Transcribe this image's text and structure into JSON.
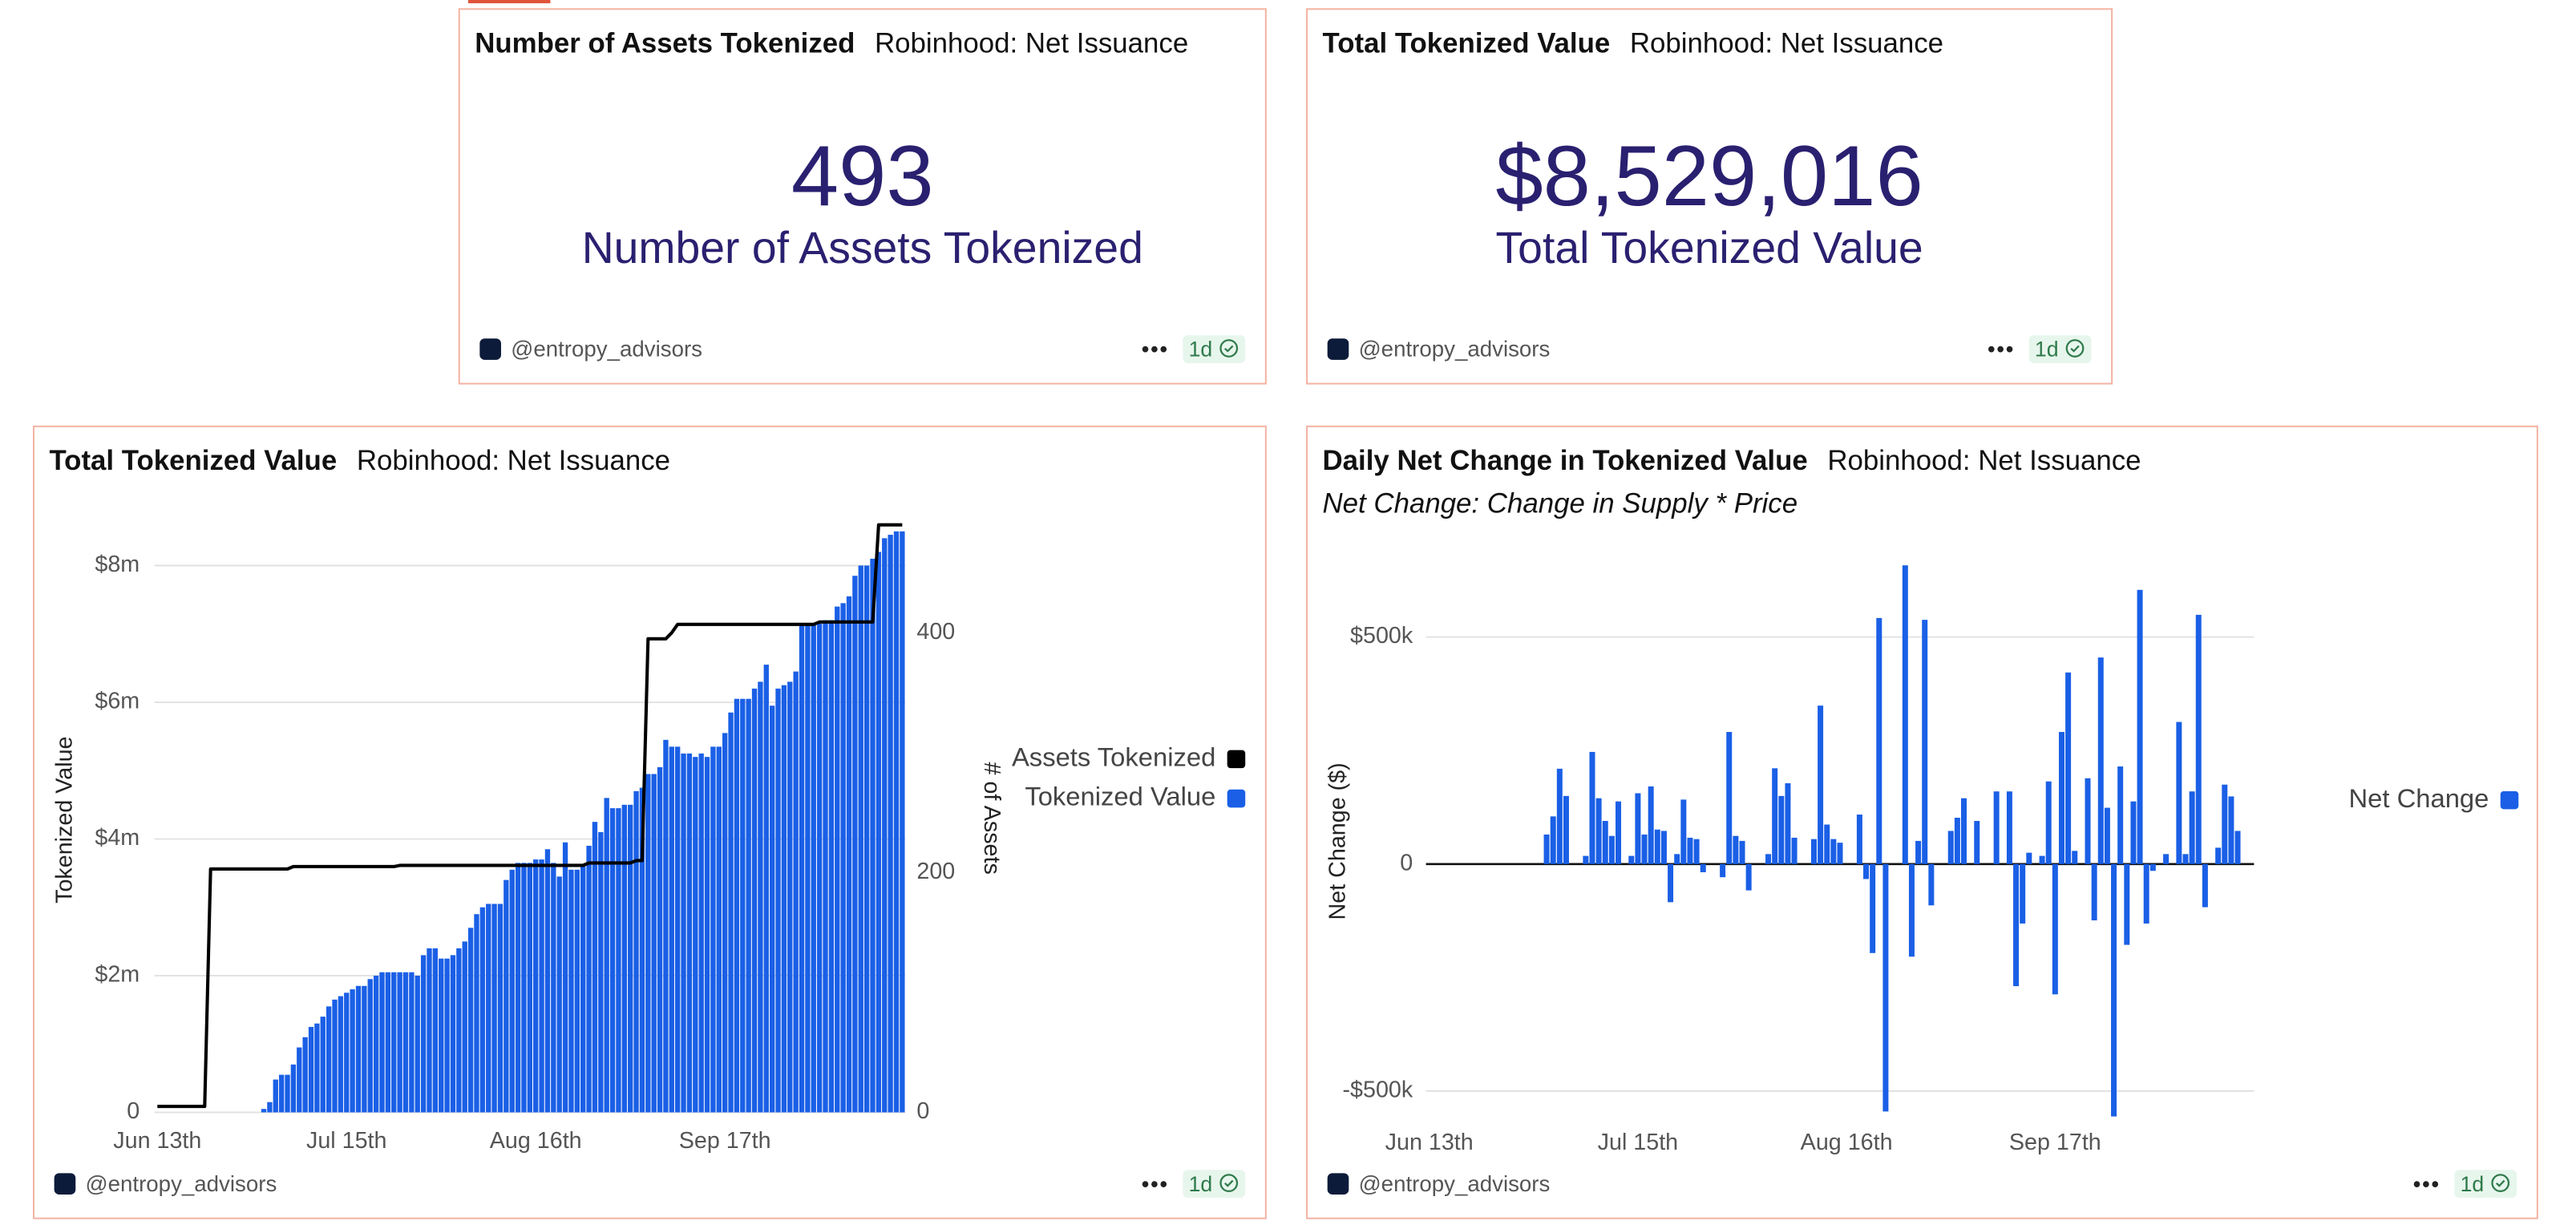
{
  "widgets": [
    {
      "title": "Number of Assets Tokenized",
      "subtitle": "Robinhood: Net Issuance",
      "value": 493,
      "label": "Number of Assets Tokenized",
      "author": "@entropy_advisors",
      "age": "1d"
    },
    {
      "title": "Total Tokenized Value",
      "subtitle": "Robinhood: Net Issuance",
      "value": "$8,529,016",
      "label": "Total Tokenized Value",
      "author": "@entropy_advisors",
      "age": "1d"
    }
  ],
  "chart_footers": [
    {
      "author": "@entropy_advisors",
      "age": "1d"
    },
    {
      "author": "@entropy_advisors",
      "age": "1d"
    }
  ],
  "chart_data": [
    {
      "type": "bar",
      "title": "Total Tokenized Value",
      "subtitle": "Robinhood: Net Issuance",
      "ylabel": "Tokenized Value",
      "y2label": "# of Assets",
      "categories": [
        "Jun 13th",
        null,
        null,
        null,
        null,
        null,
        null,
        null,
        null,
        null,
        null,
        null,
        null,
        null,
        null,
        null,
        null,
        null,
        null,
        null,
        null,
        null,
        null,
        null,
        null,
        null,
        null,
        null,
        null,
        null,
        null,
        null,
        "Jul 15th",
        null,
        null,
        null,
        null,
        null,
        null,
        null,
        null,
        null,
        null,
        null,
        null,
        null,
        null,
        null,
        null,
        null,
        null,
        null,
        null,
        null,
        null,
        null,
        null,
        null,
        null,
        null,
        null,
        null,
        null,
        null,
        "Aug 16th",
        null,
        null,
        null,
        null,
        null,
        null,
        null,
        null,
        null,
        null,
        null,
        null,
        null,
        null,
        null,
        null,
        null,
        null,
        null,
        null,
        null,
        null,
        null,
        null,
        null,
        null,
        null,
        null,
        null,
        null,
        null,
        "Sep 17th",
        null,
        null,
        null,
        null,
        null,
        null,
        null,
        null,
        null,
        null,
        null,
        null,
        null,
        null,
        null,
        null,
        null,
        null,
        null,
        null,
        null,
        null,
        null,
        null,
        null,
        null,
        null,
        null,
        null,
        null
      ],
      "series": [
        {
          "name": "Assets Tokenized",
          "type": "line",
          "axis": "y2",
          "color": "#000000",
          "values": [
            5,
            5,
            5,
            5,
            5,
            5,
            5,
            5,
            5,
            203,
            203,
            203,
            203,
            203,
            203,
            203,
            203,
            203,
            203,
            203,
            203,
            203,
            203,
            205,
            205,
            205,
            205,
            205,
            205,
            205,
            205,
            205,
            205,
            205,
            205,
            205,
            205,
            205,
            205,
            205,
            205,
            206,
            206,
            206,
            206,
            206,
            206,
            206,
            206,
            206,
            206,
            206,
            206,
            206,
            206,
            206,
            206,
            206,
            206,
            206,
            206,
            206,
            206,
            206,
            206,
            206,
            206,
            206,
            206,
            206,
            206,
            206,
            206,
            208,
            208,
            208,
            208,
            208,
            208,
            208,
            208,
            210,
            210,
            395,
            395,
            395,
            395,
            400,
            407,
            407,
            407,
            407,
            407,
            407,
            407,
            407,
            407,
            407,
            407,
            407,
            407,
            407,
            407,
            407,
            407,
            407,
            407,
            407,
            407,
            407,
            407,
            407,
            409,
            409,
            409,
            409,
            409,
            409,
            409,
            409,
            409,
            409,
            490,
            490,
            490,
            490,
            490
          ]
        },
        {
          "name": "Tokenized Value",
          "type": "bar",
          "color": "#1a5fe6",
          "values": [
            null,
            null,
            null,
            null,
            null,
            null,
            null,
            null,
            null,
            null,
            null,
            null,
            null,
            null,
            null,
            null,
            null,
            null,
            50000,
            150000,
            480000,
            550000,
            550000,
            700000,
            950000,
            1100000,
            1250000,
            1300000,
            1400000,
            1550000,
            1650000,
            1700000,
            1750000,
            1800000,
            1850000,
            1850000,
            1950000,
            2000000,
            2050000,
            2050000,
            2050000,
            2050000,
            2050000,
            2050000,
            2000000,
            2300000,
            2400000,
            2400000,
            2250000,
            2250000,
            2300000,
            2400000,
            2500000,
            2700000,
            2900000,
            3000000,
            3050000,
            3050000,
            3050000,
            3400000,
            3550000,
            3650000,
            3650000,
            3650000,
            3700000,
            3700000,
            3850000,
            3650000,
            3450000,
            3950000,
            3550000,
            3550000,
            3600000,
            3900000,
            4250000,
            4100000,
            4600000,
            4450000,
            4450000,
            4500000,
            4500000,
            4700000,
            4750000,
            4950000,
            4950000,
            5050000,
            5450000,
            5350000,
            5350000,
            5250000,
            5250000,
            5200000,
            5250000,
            5200000,
            5350000,
            5350000,
            5550000,
            5850000,
            6050000,
            6050000,
            6050000,
            6200000,
            6300000,
            6550000,
            5950000,
            6200000,
            6250000,
            6300000,
            6450000,
            7150000,
            7150000,
            7150000,
            7150000,
            7200000,
            7200000,
            7400000,
            7450000,
            7550000,
            7850000,
            8000000,
            8000000,
            8100000,
            8200000,
            8400000,
            8450000,
            8500000,
            8500000
          ]
        }
      ],
      "ylim": [
        0,
        8630000
      ],
      "yticks": [
        0,
        {
          "value": 2000000,
          "label": "$2m"
        },
        {
          "value": 4000000,
          "label": "$4m"
        },
        {
          "value": 6000000,
          "label": "$6m"
        },
        {
          "value": 8000000,
          "label": "$8m"
        }
      ],
      "y2lim": [
        0,
        492
      ],
      "y2ticks": [
        0,
        200,
        400
      ],
      "grid": true,
      "legend": "right"
    },
    {
      "type": "bar",
      "title": "Daily Net Change in Tokenized Value",
      "subtitle": "Robinhood: Net Issuance",
      "note": "Net Change: Change in Supply * Price",
      "ylabel": "Net Change ($)",
      "categories": [
        "Jun 13th",
        null,
        null,
        null,
        null,
        null,
        null,
        null,
        null,
        null,
        null,
        null,
        null,
        null,
        null,
        null,
        null,
        null,
        null,
        null,
        null,
        null,
        null,
        null,
        null,
        null,
        null,
        null,
        null,
        null,
        null,
        null,
        "Jul 15th",
        null,
        null,
        null,
        null,
        null,
        null,
        null,
        null,
        null,
        null,
        null,
        null,
        null,
        null,
        null,
        null,
        null,
        null,
        null,
        null,
        null,
        null,
        null,
        null,
        null,
        null,
        null,
        null,
        null,
        null,
        null,
        "Aug 16th",
        null,
        null,
        null,
        null,
        null,
        null,
        null,
        null,
        null,
        null,
        null,
        null,
        null,
        null,
        null,
        null,
        null,
        null,
        null,
        null,
        null,
        null,
        null,
        null,
        null,
        null,
        null,
        null,
        null,
        null,
        null,
        "Sep 17th",
        null,
        null,
        null,
        null,
        null,
        null,
        null,
        null,
        null,
        null,
        null,
        null,
        null,
        null,
        null,
        null,
        null,
        null,
        null,
        null,
        null,
        null,
        null,
        null,
        null,
        null,
        null,
        null,
        null,
        null
      ],
      "series": [
        {
          "name": "Net Change",
          "type": "bar",
          "color": "#1a5fe6",
          "values": [
            0,
            0,
            0,
            0,
            0,
            0,
            0,
            0,
            0,
            0,
            0,
            0,
            0,
            0,
            0,
            0,
            0,
            0,
            65000,
            105000,
            210000,
            150000,
            0,
            0,
            18000,
            247000,
            145000,
            95000,
            62000,
            138000,
            0,
            18000,
            156000,
            65000,
            171000,
            76000,
            73000,
            -84000,
            22000,
            142000,
            58000,
            55000,
            -18000,
            0,
            0,
            -29000,
            291000,
            62000,
            51000,
            -58000,
            0,
            0,
            22000,
            211000,
            150000,
            178000,
            58000,
            0,
            0,
            55000,
            349000,
            87000,
            55000,
            47000,
            0,
            0,
            109000,
            -33000,
            -196000,
            542000,
            -545000,
            0,
            0,
            658000,
            -204000,
            51000,
            538000,
            -91000,
            0,
            0,
            73000,
            102000,
            145000,
            0,
            95000,
            0,
            0,
            160000,
            0,
            160000,
            -269000,
            -131000,
            25000,
            0,
            18000,
            182000,
            -287000,
            291000,
            422000,
            29000,
            0,
            189000,
            -124000,
            455000,
            124000,
            -556000,
            215000,
            -178000,
            138000,
            604000,
            -131000,
            -15000,
            0,
            22000,
            0,
            313000,
            22000,
            160000,
            549000,
            -95000,
            0,
            36000,
            175000,
            149000,
            73000,
            0,
            0
          ]
        }
      ],
      "ylim": [
        -560000,
        680000
      ],
      "yticks": [
        {
          "value": -500000,
          "label": "-$500k"
        },
        0,
        {
          "value": 500000,
          "label": "$500k"
        }
      ],
      "grid": true,
      "legend": "right"
    }
  ]
}
